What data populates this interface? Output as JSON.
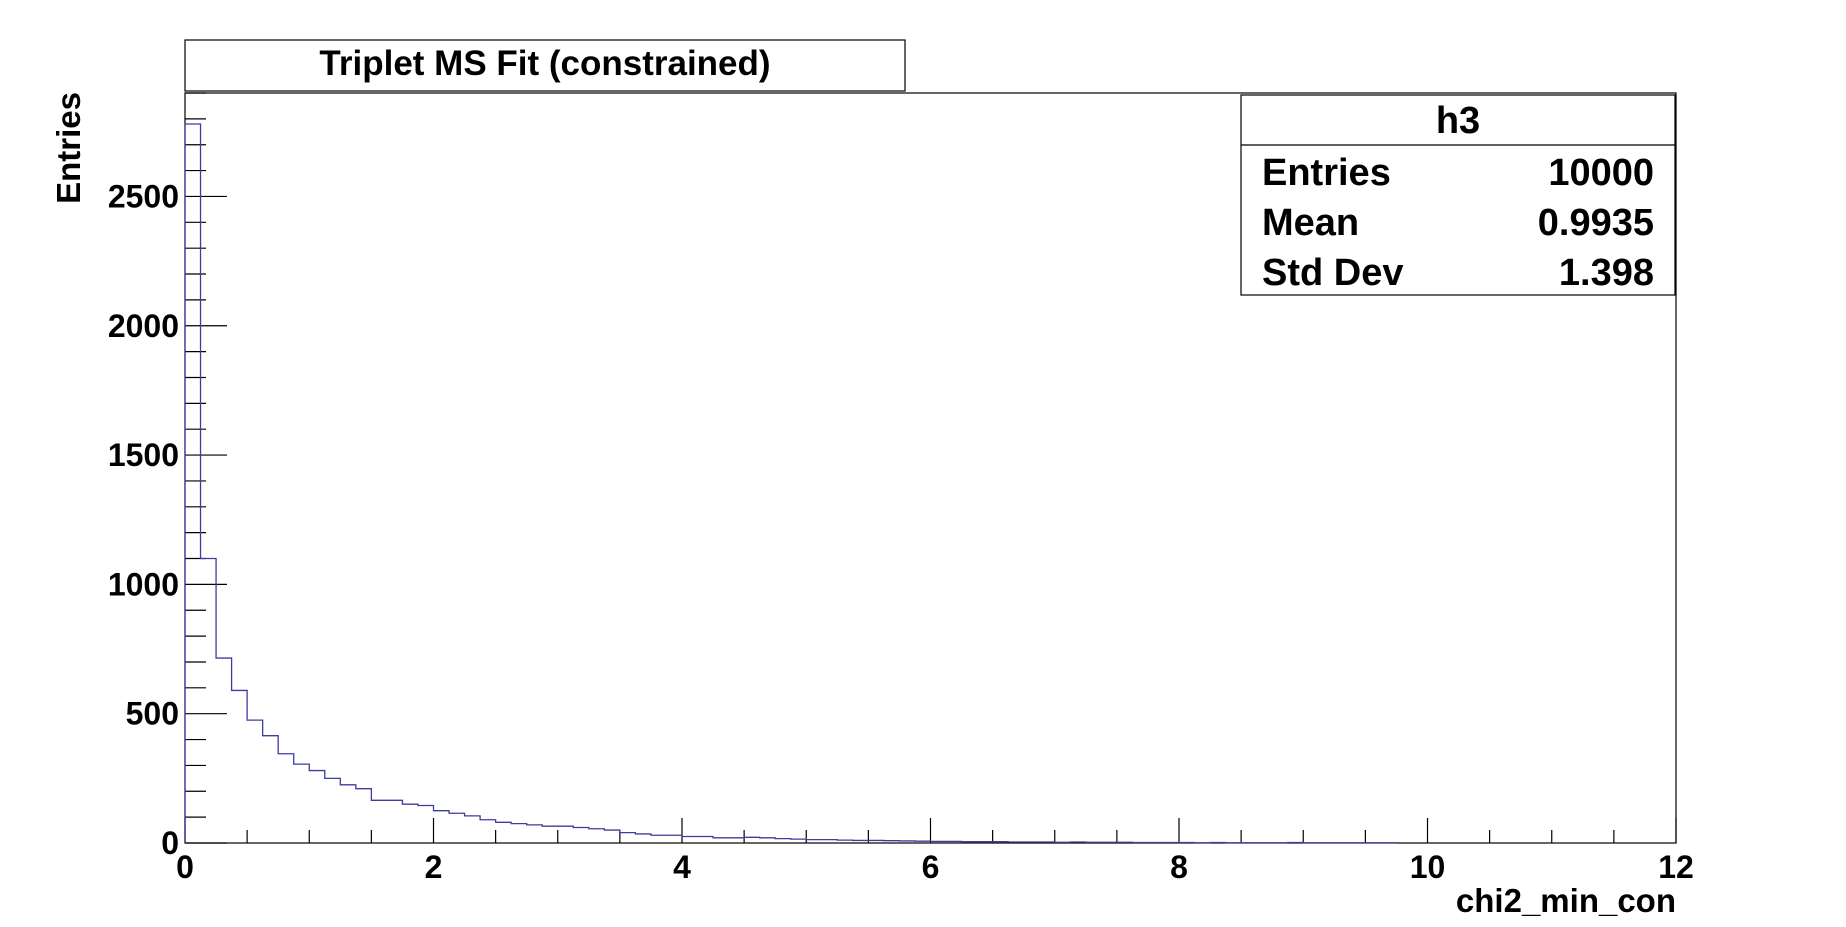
{
  "chart_data": {
    "type": "histogram",
    "title": "Triplet MS Fit (constrained)",
    "xlabel": "chi2_min_con",
    "ylabel": "Entries",
    "xlim": [
      0,
      12
    ],
    "ylim": [
      0,
      2900
    ],
    "bin_width": 0.125,
    "x_ticks": [
      0,
      2,
      4,
      6,
      8,
      10,
      12
    ],
    "y_ticks": [
      0,
      500,
      1000,
      1500,
      2000,
      2500
    ],
    "grid": false,
    "line_color": "#3d3d9e",
    "series": [
      {
        "values": [
          2780,
          1100,
          715,
          590,
          475,
          415,
          345,
          305,
          280,
          250,
          225,
          210,
          165,
          165,
          150,
          145,
          125,
          115,
          105,
          90,
          80,
          75,
          70,
          65,
          65,
          60,
          55,
          50,
          40,
          35,
          30,
          30,
          25,
          25,
          20,
          20,
          22,
          20,
          17,
          15,
          13,
          13,
          11,
          10,
          10,
          9,
          8,
          7,
          6,
          6,
          5,
          5,
          5,
          4,
          4,
          4,
          3,
          4,
          3,
          3,
          3,
          2,
          2,
          2,
          2,
          1,
          2,
          1,
          1,
          1,
          1,
          2,
          1,
          1,
          1,
          1,
          1,
          1
        ]
      }
    ],
    "stats_box": {
      "name": "h3",
      "rows": [
        {
          "label": "Entries",
          "value": "10000"
        },
        {
          "label": "Mean",
          "value": "0.9935"
        },
        {
          "label": "Std Dev",
          "value": "1.398"
        }
      ]
    }
  }
}
